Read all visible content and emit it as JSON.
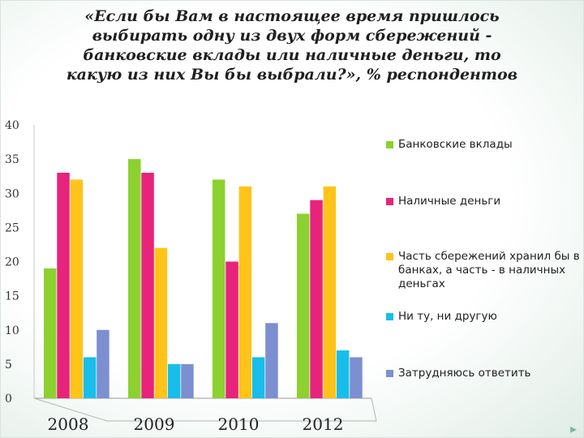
{
  "slide": {
    "title": "«Если бы Вам в настоящее время пришлось выбирать одну из двух форм сбережений - банковские вклады или наличные деньги, то какую из них Вы бы выбрали?», % респондентов",
    "nav_icon": "next-slide-arrow-icon"
  },
  "chart_data": {
    "type": "bar",
    "categories": [
      "2008",
      "2009",
      "2010",
      "2012"
    ],
    "ylim": [
      0,
      40
    ],
    "yticks": [
      0,
      5,
      10,
      15,
      20,
      25,
      30,
      35,
      40
    ],
    "grid": false,
    "legend_position": "right",
    "series": [
      {
        "name": "Банковские вклады",
        "color": "#8CD12F",
        "values": [
          19,
          35,
          32,
          27
        ]
      },
      {
        "name": "Наличные деньги",
        "color": "#E8237C",
        "values": [
          33,
          33,
          20,
          29
        ]
      },
      {
        "name": "Часть сбережений хранил бы в банках, а часть - в наличных деньгах",
        "color": "#FFC31A",
        "values": [
          32,
          22,
          31,
          31
        ]
      },
      {
        "name": "Ни ту, ни другую",
        "color": "#18BEE9",
        "values": [
          6,
          5,
          6,
          7
        ]
      },
      {
        "name": "Затрудняюсь ответить",
        "color": "#7C8FD0",
        "values": [
          10,
          5,
          11,
          6
        ]
      }
    ]
  }
}
